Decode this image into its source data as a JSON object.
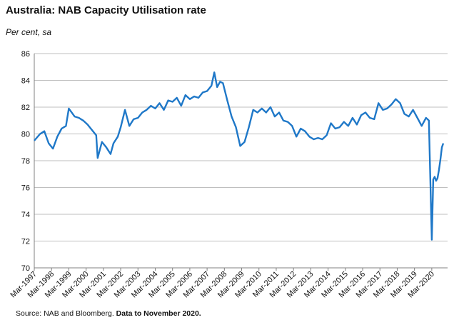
{
  "header": {
    "title": "Australia: NAB Capacity Utilisation rate",
    "subtitle": "Per cent, sa"
  },
  "footer": {
    "source_label": "Source: NAB and Bloomberg.",
    "source_note": "Data to November 2020."
  },
  "colors": {
    "line": "#1f78c8",
    "grid": "#bfbfbf",
    "axis": "#808080"
  },
  "chart_data": {
    "type": "line",
    "title": "Australia: NAB Capacity Utilisation rate",
    "subtitle": "Per cent, sa",
    "xlabel": "",
    "ylabel": "Per cent, sa",
    "ylim": [
      70,
      86
    ],
    "yticks": [
      70,
      72,
      74,
      76,
      78,
      80,
      82,
      84,
      86
    ],
    "xticks": [
      "Mar-1997",
      "Mar-1998",
      "Mar-1999",
      "Mar-2000",
      "Mar-2001",
      "Mar-2002",
      "Mar-2003",
      "Mar-2004",
      "Mar-2005",
      "Mar-2006",
      "Mar-2007",
      "Mar-2008",
      "Mar-2009",
      "Mar-2010",
      "Mar-2011",
      "Mar-2012",
      "Mar-2013",
      "Mar-2014",
      "Mar-2015",
      "Mar-2016",
      "Mar-2017",
      "Mar-2018",
      "Mar-2019",
      "Mar-2020"
    ],
    "xlim": [
      "Mar-1997",
      "Nov-2020"
    ],
    "grid": "horizontal",
    "legend": "none",
    "series": [
      {
        "x": [
          "Mar-1997",
          "Jul-1997",
          "Oct-1997",
          "Jan-1998",
          "Apr-1998",
          "Jul-1998",
          "Oct-1998",
          "Jan-1999",
          "Mar-1999",
          "Jul-1999",
          "Oct-1999",
          "Jan-2000",
          "Apr-2000",
          "Jul-2000",
          "Oct-2000",
          "Nov-2000",
          "Feb-2001",
          "May-2001",
          "Aug-2001",
          "Oct-2001",
          "Jan-2002",
          "Mar-2002",
          "Jun-2002",
          "Sep-2002",
          "Dec-2002",
          "Mar-2003",
          "Jun-2003",
          "Sep-2003",
          "Dec-2003",
          "Mar-2004",
          "Jun-2004",
          "Sep-2004",
          "Dec-2004",
          "Mar-2005",
          "Jun-2005",
          "Sep-2005",
          "Dec-2005",
          "Mar-2006",
          "Jun-2006",
          "Sep-2006",
          "Dec-2006",
          "Mar-2007",
          "Jun-2007",
          "Aug-2007",
          "Oct-2007",
          "Dec-2007",
          "Feb-2008",
          "May-2008",
          "Aug-2008",
          "Nov-2008",
          "Feb-2009",
          "May-2009",
          "Aug-2009",
          "Nov-2009",
          "Feb-2010",
          "May-2010",
          "Aug-2010",
          "Nov-2010",
          "Feb-2011",
          "May-2011",
          "Aug-2011",
          "Nov-2011",
          "Feb-2012",
          "May-2012",
          "Aug-2012",
          "Nov-2012",
          "Feb-2013",
          "May-2013",
          "Aug-2013",
          "Nov-2013",
          "Feb-2014",
          "May-2014",
          "Aug-2014",
          "Nov-2014",
          "Feb-2015",
          "May-2015",
          "Aug-2015",
          "Nov-2015",
          "Feb-2016",
          "May-2016",
          "Aug-2016",
          "Nov-2016",
          "Feb-2017",
          "May-2017",
          "Aug-2017",
          "Nov-2017",
          "Feb-2018",
          "May-2018",
          "Aug-2018",
          "Nov-2018",
          "Feb-2019",
          "May-2019",
          "Aug-2019",
          "Nov-2019",
          "Jan-2020",
          "Mar-2020",
          "Apr-2020",
          "May-2020",
          "Jun-2020",
          "Jul-2020",
          "Aug-2020",
          "Sep-2020",
          "Oct-2020",
          "Nov-2020"
        ],
        "values": [
          79.5,
          80.0,
          80.2,
          79.3,
          78.9,
          79.8,
          80.4,
          80.6,
          81.9,
          81.3,
          81.2,
          81.0,
          80.7,
          80.3,
          79.9,
          78.2,
          79.4,
          79.0,
          78.5,
          79.3,
          79.8,
          80.5,
          81.8,
          80.6,
          81.1,
          81.2,
          81.6,
          81.8,
          82.1,
          81.9,
          82.3,
          81.8,
          82.5,
          82.4,
          82.7,
          82.1,
          82.9,
          82.6,
          82.8,
          82.7,
          83.1,
          83.2,
          83.6,
          84.6,
          83.5,
          83.9,
          83.8,
          82.5,
          81.3,
          80.5,
          79.1,
          79.4,
          80.5,
          81.8,
          81.6,
          81.9,
          81.6,
          82.0,
          81.3,
          81.6,
          81.0,
          80.9,
          80.6,
          79.8,
          80.4,
          80.2,
          79.8,
          79.6,
          79.7,
          79.6,
          79.9,
          80.8,
          80.4,
          80.5,
          80.9,
          80.6,
          81.2,
          80.7,
          81.4,
          81.6,
          81.2,
          81.1,
          82.3,
          81.8,
          81.9,
          82.2,
          82.6,
          82.3,
          81.5,
          81.3,
          81.8,
          81.2,
          80.6,
          81.2,
          81.0,
          72.1,
          76.6,
          76.8,
          76.5,
          76.7,
          77.3,
          78.1,
          79.0,
          79.3
        ]
      }
    ]
  }
}
